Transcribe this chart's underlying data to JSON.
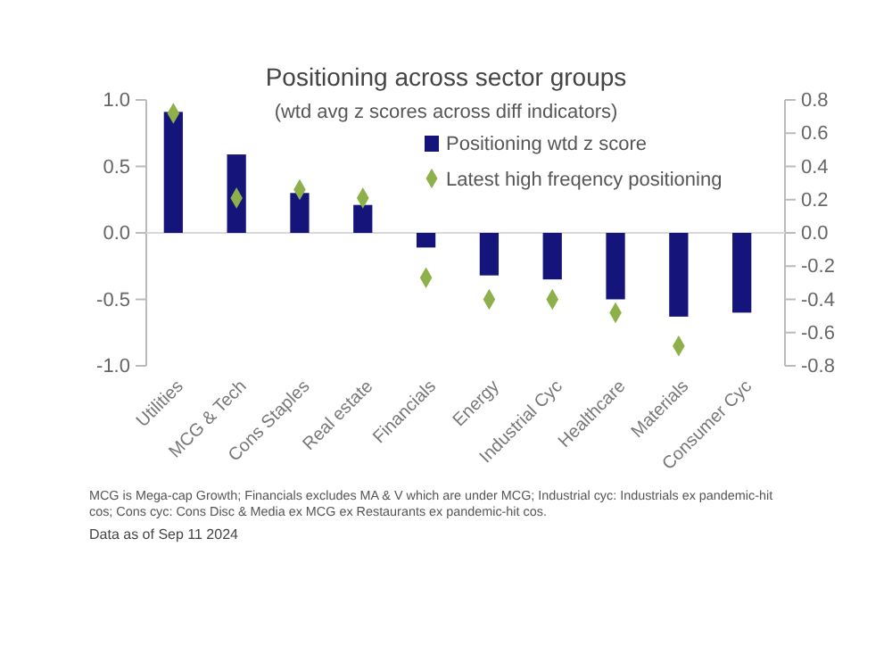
{
  "chart_data": {
    "type": "bar",
    "title": "Positioning across sector groups",
    "subtitle": "(wtd avg z scores across diff indicators)",
    "categories": [
      "Utilities",
      "MCG & Tech",
      "Cons Staples",
      "Real estate",
      "Financials",
      "Energy",
      "Industrial Cyc",
      "Healthcare",
      "Materials",
      "Consumer Cyc"
    ],
    "series": [
      {
        "name": "Positioning wtd z score",
        "color": "#14147a",
        "values": [
          0.91,
          0.59,
          0.3,
          0.21,
          -0.11,
          -0.32,
          -0.35,
          -0.5,
          -0.63,
          -0.6
        ]
      },
      {
        "name": "Latest high freqency positioning",
        "type": "scatter",
        "axis": "y2",
        "marker": "diamond",
        "color": "#8db04a",
        "values": [
          0.72,
          0.21,
          0.26,
          0.21,
          -0.27,
          -0.4,
          -0.4,
          -0.48,
          -0.68,
          null
        ]
      }
    ],
    "ylim": [
      -1,
      1
    ],
    "yticks": [
      {
        "value": -1,
        "label": "-1.0"
      },
      {
        "value": -0.5,
        "label": "-0.5"
      },
      {
        "value": 0,
        "label": "0.0"
      },
      {
        "value": 0.5,
        "label": "0.5"
      },
      {
        "value": 1,
        "label": "1.0"
      }
    ],
    "y2lim": [
      -0.8,
      0.8
    ],
    "y2ticks": [
      {
        "value": -0.8,
        "label": "-0.8"
      },
      {
        "value": -0.6,
        "label": "-0.6"
      },
      {
        "value": -0.4,
        "label": "-0.4"
      },
      {
        "value": -0.2,
        "label": "-0.2"
      },
      {
        "value": 0,
        "label": "0.0"
      },
      {
        "value": 0.2,
        "label": "0.2"
      },
      {
        "value": 0.4,
        "label": "0.4"
      },
      {
        "value": 0.6,
        "label": "0.6"
      },
      {
        "value": 0.8,
        "label": "0.8"
      }
    ],
    "legend": "top right",
    "annotations": [
      "MCG is Mega-cap Growth; Financials excludes MA & V which are under MCG;  Industrial cyc: Industrials ex pandemic-hit cos; Cons cyc: Cons Disc & Media ex MCG ex Restaurants ex pandemic-hit cos.",
      "Data as of Sep 11 2024"
    ]
  }
}
